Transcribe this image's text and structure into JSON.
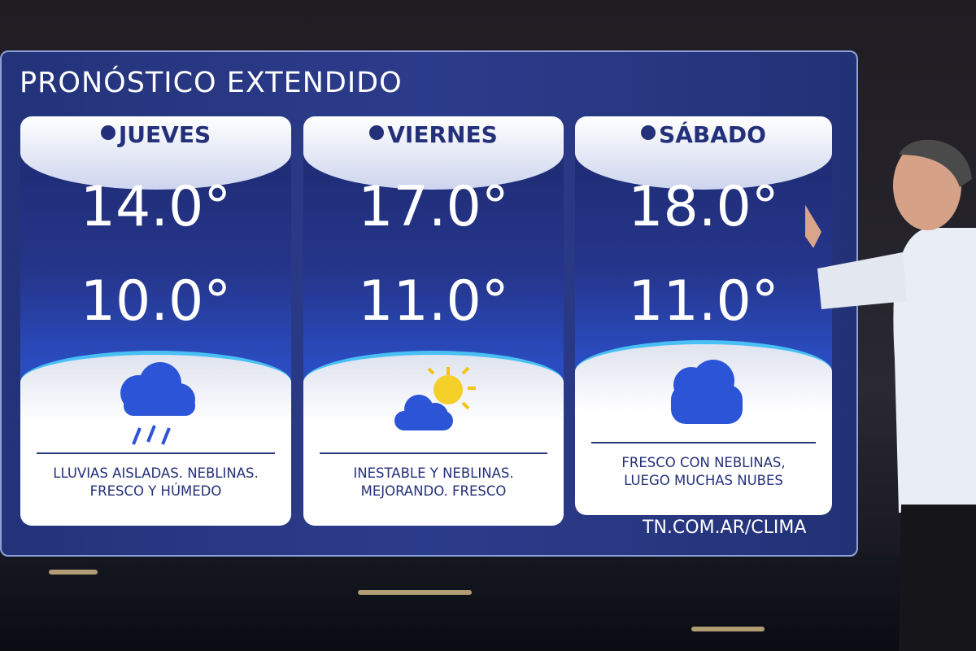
{
  "header": {
    "title": "PRONÓSTICO EXTENDIDO"
  },
  "days": [
    {
      "name": "JUEVES",
      "high": "14.0°",
      "low": "10.0°",
      "description": [
        "LLUVIAS AISLADAS. NEBLINAS.",
        "FRESCO Y HÚMEDO"
      ]
    },
    {
      "name": "VIERNES",
      "high": "17.0°",
      "low": "11.0°",
      "description": [
        "INESTABLE Y NEBLINAS.",
        "MEJORANDO. FRESCO"
      ]
    },
    {
      "name": "SÁBADO",
      "high": "18.0°",
      "low": "11.0°",
      "description": [
        "FRESCO CON NEBLINAS,",
        "LUEGO MUCHAS NUBES"
      ]
    }
  ],
  "footer": {
    "url": "TN.COM.AR/CLIMA"
  }
}
